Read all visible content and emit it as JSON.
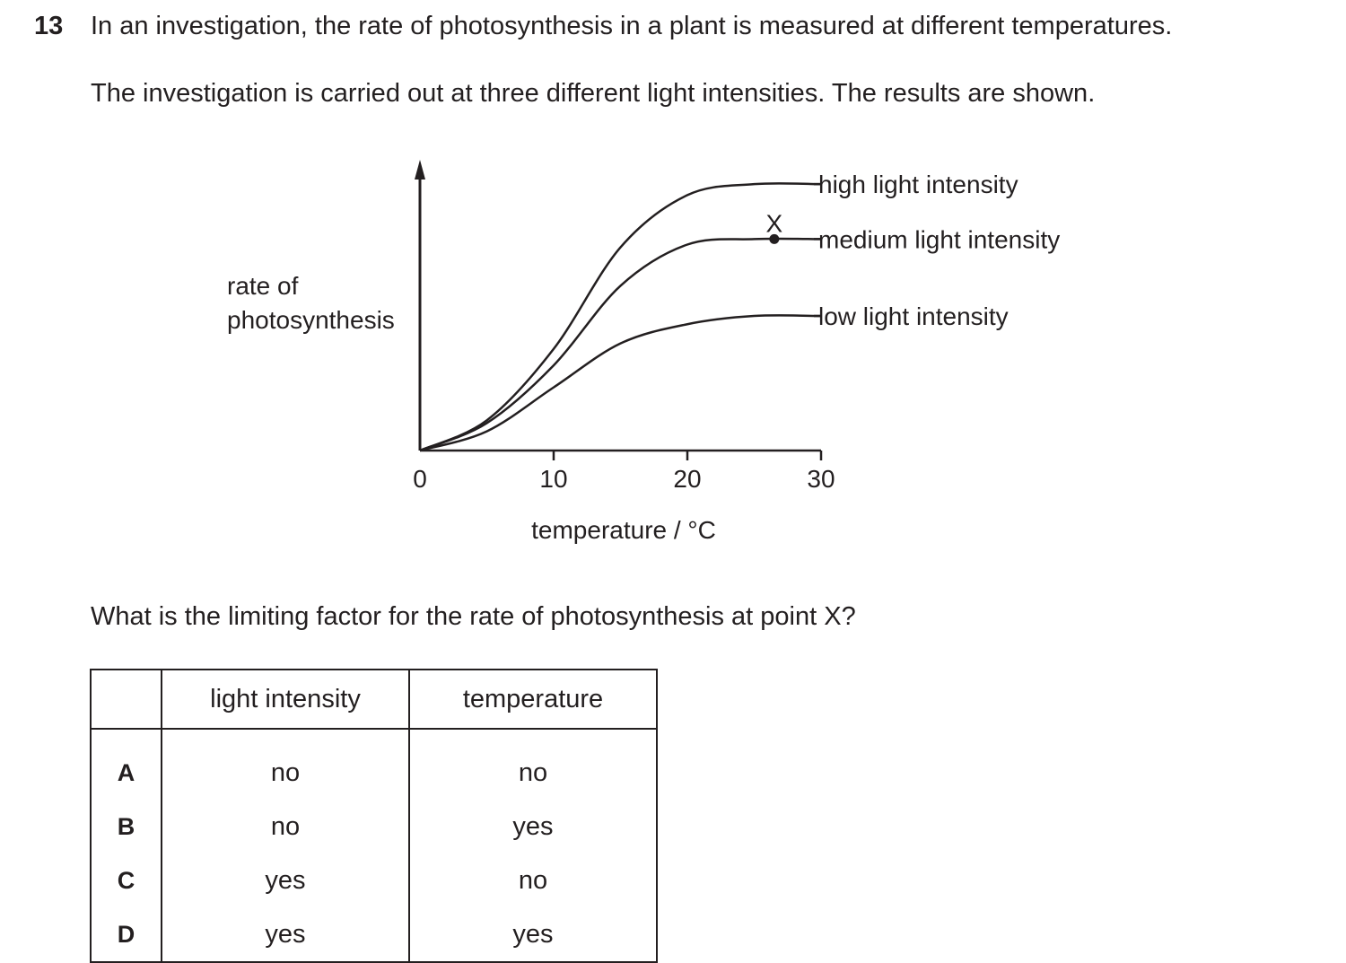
{
  "question": {
    "number": "13",
    "intro_line1": "In an investigation, the rate of photosynthesis in a plant is measured at different temperatures.",
    "intro_line2": "The investigation is carried out at three different light intensities. The results are shown.",
    "prompt": "What is the limiting factor for the rate of photosynthesis at point X?"
  },
  "chart_data": {
    "type": "line",
    "xlabel": "temperature / °C",
    "ylabel_line1": "rate of",
    "ylabel_line2": "photosynthesis",
    "xlim": [
      0,
      30
    ],
    "xticks": [
      "0",
      "10",
      "20",
      "30"
    ],
    "y_axis_numbered": false,
    "series": [
      {
        "name": "high light intensity",
        "x": [
          0,
          5,
          10,
          15,
          20,
          25,
          30
        ],
        "y": [
          0,
          0.11,
          0.37,
          0.74,
          0.93,
          0.97,
          0.97
        ]
      },
      {
        "name": "medium light intensity",
        "x": [
          0,
          5,
          10,
          15,
          20,
          25,
          30
        ],
        "y": [
          0,
          0.1,
          0.31,
          0.6,
          0.75,
          0.77,
          0.77
        ]
      },
      {
        "name": "low light intensity",
        "x": [
          0,
          5,
          10,
          15,
          20,
          25,
          30
        ],
        "y": [
          0,
          0.07,
          0.23,
          0.39,
          0.46,
          0.49,
          0.49
        ]
      }
    ],
    "annotations": [
      {
        "label": "X",
        "series": "medium light intensity",
        "x": 26.5,
        "y": 0.77
      }
    ]
  },
  "options_table": {
    "headers": [
      "",
      "light intensity",
      "temperature"
    ],
    "rows": [
      {
        "letter": "A",
        "light_intensity": "no",
        "temperature": "no"
      },
      {
        "letter": "B",
        "light_intensity": "no",
        "temperature": "yes"
      },
      {
        "letter": "C",
        "light_intensity": "yes",
        "temperature": "no"
      },
      {
        "letter": "D",
        "light_intensity": "yes",
        "temperature": "yes"
      }
    ]
  }
}
